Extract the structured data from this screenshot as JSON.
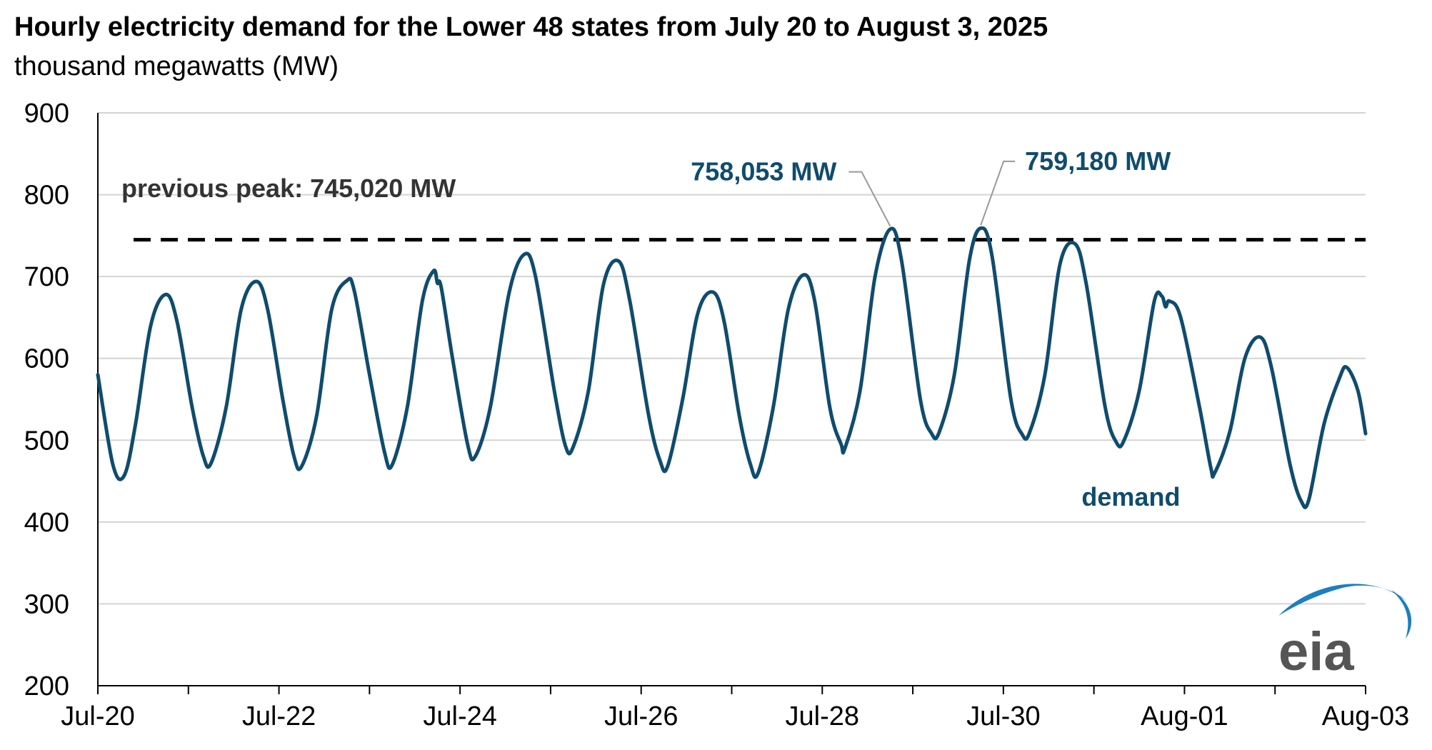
{
  "chart_data": {
    "type": "line",
    "title": "Hourly electricity demand for the Lower 48 states from July 20 to August 3, 2025",
    "subtitle": "thousand megawatts (MW)",
    "xlabel": "",
    "ylabel": "",
    "ylim": [
      200,
      900
    ],
    "yticks": [
      200,
      300,
      400,
      500,
      600,
      700,
      800,
      900
    ],
    "xlim": [
      "2025-07-20",
      "2025-08-03"
    ],
    "xtick_labels": [
      "Jul-20",
      "Jul-22",
      "Jul-24",
      "Jul-26",
      "Jul-28",
      "Jul-30",
      "Aug-01",
      "Aug-03"
    ],
    "grid": true,
    "series": [
      {
        "name": "demand",
        "color": "#0f4c6e",
        "points": [
          [
            "2025-07-20T00:00",
            580
          ],
          [
            "2025-07-20T04:00",
            470
          ],
          [
            "2025-07-20T07:00",
            457
          ],
          [
            "2025-07-20T10:00",
            520
          ],
          [
            "2025-07-20T14:00",
            640
          ],
          [
            "2025-07-20T18:00",
            678
          ],
          [
            "2025-07-20T21:00",
            645
          ],
          [
            "2025-07-21T01:00",
            540
          ],
          [
            "2025-07-21T04:00",
            480
          ],
          [
            "2025-07-21T06:00",
            472
          ],
          [
            "2025-07-21T10:00",
            540
          ],
          [
            "2025-07-21T14:00",
            660
          ],
          [
            "2025-07-21T18:00",
            694
          ],
          [
            "2025-07-21T21:00",
            660
          ],
          [
            "2025-07-22T01:00",
            550
          ],
          [
            "2025-07-22T04:00",
            480
          ],
          [
            "2025-07-22T06:00",
            468
          ],
          [
            "2025-07-22T10:00",
            530
          ],
          [
            "2025-07-22T14:00",
            660
          ],
          [
            "2025-07-22T18:00",
            695
          ],
          [
            "2025-07-22T20:00",
            682
          ],
          [
            "2025-07-23T00:00",
            580
          ],
          [
            "2025-07-23T04:00",
            485
          ],
          [
            "2025-07-23T06:00",
            470
          ],
          [
            "2025-07-23T10:00",
            540
          ],
          [
            "2025-07-23T14:00",
            670
          ],
          [
            "2025-07-23T17:00",
            707
          ],
          [
            "2025-07-23T18:00",
            692
          ],
          [
            "2025-07-23T19:00",
            687
          ],
          [
            "2025-07-23T22:00",
            600
          ],
          [
            "2025-07-24T02:00",
            495
          ],
          [
            "2025-07-24T04:00",
            480
          ],
          [
            "2025-07-24T08:00",
            540
          ],
          [
            "2025-07-24T13:00",
            680
          ],
          [
            "2025-07-24T17:00",
            727
          ],
          [
            "2025-07-24T20:00",
            700
          ],
          [
            "2025-07-25T01:00",
            560
          ],
          [
            "2025-07-25T04:00",
            492
          ],
          [
            "2025-07-25T06:00",
            492
          ],
          [
            "2025-07-25T10:00",
            560
          ],
          [
            "2025-07-25T14:00",
            690
          ],
          [
            "2025-07-25T18:00",
            719
          ],
          [
            "2025-07-25T21:00",
            670
          ],
          [
            "2025-07-26T02:00",
            530
          ],
          [
            "2025-07-26T05:00",
            475
          ],
          [
            "2025-07-26T07:00",
            468
          ],
          [
            "2025-07-26T11:00",
            550
          ],
          [
            "2025-07-26T15:00",
            655
          ],
          [
            "2025-07-26T19:00",
            681
          ],
          [
            "2025-07-26T22:00",
            645
          ],
          [
            "2025-07-27T02:00",
            530
          ],
          [
            "2025-07-27T05:00",
            470
          ],
          [
            "2025-07-27T07:00",
            460
          ],
          [
            "2025-07-27T11:00",
            540
          ],
          [
            "2025-07-27T15:00",
            660
          ],
          [
            "2025-07-27T19:00",
            702
          ],
          [
            "2025-07-27T22:00",
            670
          ],
          [
            "2025-07-28T02:00",
            540
          ],
          [
            "2025-07-28T05:00",
            495
          ],
          [
            "2025-07-28T06:00",
            490
          ],
          [
            "2025-07-28T10:00",
            560
          ],
          [
            "2025-07-28T14:00",
            700
          ],
          [
            "2025-07-28T18:00",
            758
          ],
          [
            "2025-07-28T21:00",
            720
          ],
          [
            "2025-07-29T02:00",
            550
          ],
          [
            "2025-07-29T05:00",
            508
          ],
          [
            "2025-07-29T07:00",
            510
          ],
          [
            "2025-07-29T11:00",
            580
          ],
          [
            "2025-07-29T15:00",
            720
          ],
          [
            "2025-07-29T18:00",
            759
          ],
          [
            "2025-07-29T21:00",
            725
          ],
          [
            "2025-07-30T02:00",
            550
          ],
          [
            "2025-07-30T05:00",
            507
          ],
          [
            "2025-07-30T07:00",
            510
          ],
          [
            "2025-07-30T11:00",
            580
          ],
          [
            "2025-07-30T15:00",
            715
          ],
          [
            "2025-07-30T19:00",
            740
          ],
          [
            "2025-07-30T22:00",
            690
          ],
          [
            "2025-07-31T03:00",
            540
          ],
          [
            "2025-07-31T06:00",
            497
          ],
          [
            "2025-07-31T08:00",
            500
          ],
          [
            "2025-07-31T12:00",
            560
          ],
          [
            "2025-07-31T16:00",
            670
          ],
          [
            "2025-07-31T18:00",
            676
          ],
          [
            "2025-07-31T19:00",
            663
          ],
          [
            "2025-07-31T20:00",
            670
          ],
          [
            "2025-07-31T23:00",
            650
          ],
          [
            "2025-08-01T04:00",
            540
          ],
          [
            "2025-08-01T07:00",
            466
          ],
          [
            "2025-08-01T08:00",
            460
          ],
          [
            "2025-08-01T12:00",
            510
          ],
          [
            "2025-08-01T16:00",
            600
          ],
          [
            "2025-08-01T20:00",
            626
          ],
          [
            "2025-08-01T23:00",
            590
          ],
          [
            "2025-08-02T04:00",
            470
          ],
          [
            "2025-08-02T07:00",
            425
          ],
          [
            "2025-08-02T09:00",
            428
          ],
          [
            "2025-08-02T13:00",
            520
          ],
          [
            "2025-08-02T17:00",
            575
          ],
          [
            "2025-08-02T19:00",
            589
          ],
          [
            "2025-08-02T22:00",
            560
          ],
          [
            "2025-08-03T00:00",
            508
          ]
        ]
      }
    ],
    "reference_line": {
      "value": 745.02,
      "label": "previous peak: 745,020 MW",
      "style": "dashed",
      "color": "#000000"
    },
    "annotations": [
      {
        "label": "758,053 MW",
        "x": "2025-07-28T18:00",
        "y": 758.053,
        "color": "#0f4c6e"
      },
      {
        "label": "759,180 MW",
        "x": "2025-07-29T18:00",
        "y": 759.18,
        "color": "#0f4c6e"
      }
    ],
    "series_label": "demand",
    "logo": "eia"
  }
}
